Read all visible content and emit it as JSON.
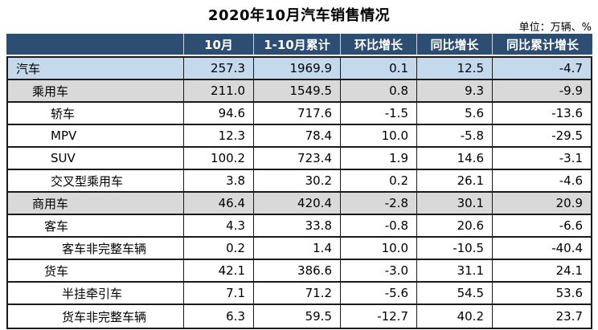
{
  "title": "2020年10月汽车销售情况",
  "unit_note": "单位：万辆、%",
  "colors": {
    "header_bg": "#2E4D72",
    "header_text": "#FFFFFF",
    "band_blue": "#C5D9EC",
    "band_gray": "#D9D9D9",
    "border": "#1A1A1A"
  },
  "chart_data": {
    "type": "table",
    "title": "2020年10月汽车销售情况",
    "unit": "万辆、%",
    "columns": [
      "",
      "10月",
      "1-10月累计",
      "环比增长",
      "同比增长",
      "同比累计增长"
    ],
    "rows": [
      {
        "label": "汽车",
        "level": 0,
        "band": "blue",
        "values": [
          "257.3",
          "1969.9",
          "0.1",
          "12.5",
          "-4.7"
        ]
      },
      {
        "label": "乘用车",
        "level": 1,
        "band": "gray",
        "values": [
          "211.0",
          "1549.5",
          "0.8",
          "9.3",
          "-9.9"
        ]
      },
      {
        "label": "轿车",
        "level": 2,
        "band": "none",
        "values": [
          "94.6",
          "717.6",
          "-1.5",
          "5.6",
          "-13.6"
        ]
      },
      {
        "label": "MPV",
        "level": 2,
        "band": "none",
        "values": [
          "12.3",
          "78.4",
          "10.0",
          "-5.8",
          "-29.5"
        ]
      },
      {
        "label": "SUV",
        "level": 2,
        "band": "none",
        "values": [
          "100.2",
          "723.4",
          "1.9",
          "14.6",
          "-3.1"
        ]
      },
      {
        "label": "交叉型乘用车",
        "level": 2,
        "band": "none",
        "values": [
          "3.8",
          "30.2",
          "0.2",
          "26.1",
          "-4.6"
        ]
      },
      {
        "label": "商用车",
        "level": 1,
        "band": "gray",
        "values": [
          "46.4",
          "420.4",
          "-2.8",
          "30.1",
          "20.9"
        ]
      },
      {
        "label": "客车",
        "level": 2,
        "band": "none",
        "values": [
          "4.3",
          "33.8",
          "-0.8",
          "20.6",
          "-6.6"
        ]
      },
      {
        "label": "客车非完整车辆",
        "level": 3,
        "band": "none",
        "values": [
          "0.2",
          "1.4",
          "10.0",
          "-10.5",
          "-40.4"
        ]
      },
      {
        "label": "货车",
        "level": 2,
        "band": "none",
        "values": [
          "42.1",
          "386.6",
          "-3.0",
          "31.1",
          "24.1"
        ]
      },
      {
        "label": "半挂牵引车",
        "level": 3,
        "band": "none",
        "values": [
          "7.1",
          "71.2",
          "-5.6",
          "54.5",
          "53.6"
        ]
      },
      {
        "label": "货车非完整车辆",
        "level": 3,
        "band": "none",
        "values": [
          "6.3",
          "59.5",
          "-12.7",
          "40.2",
          "23.7"
        ]
      }
    ]
  }
}
